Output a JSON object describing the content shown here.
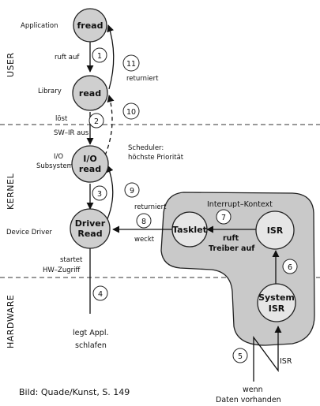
{
  "layers": {
    "user": "USER",
    "kernel": "KERNEL",
    "hardware": "HARDWARE"
  },
  "side_labels": {
    "application": "Application",
    "library": "Library",
    "io_line1": "I/O",
    "io_line2": "Subsystem",
    "device_driver": "Device Driver"
  },
  "nodes": {
    "fread": "fread",
    "read": "read",
    "io_read_line1": "I/O",
    "io_read_line2": "read",
    "driver_line1": "Driver",
    "driver_line2": "Read",
    "tasklet": "Tasklet",
    "isr": "ISR",
    "system_isr_line1": "System",
    "system_isr_line2": "ISR"
  },
  "region_title": "Interrupt–Kontext",
  "steps": [
    "1",
    "2",
    "3",
    "4",
    "5",
    "6",
    "7",
    "8",
    "9",
    "10",
    "11"
  ],
  "labels": {
    "ruft_auf": "ruft auf",
    "loest": "löst",
    "sw_ir_aus": "SW–IR aus",
    "returniert_top": "returniert",
    "scheduler_line1": "Scheduler:",
    "scheduler_line2": "höchste Priorität",
    "returniert_mid": "returniert",
    "weckt": "weckt",
    "ruft": "ruft",
    "treiber_auf": "Treiber auf",
    "startet": "startet",
    "hw_zugriff": "HW–Zugriff",
    "legt_line1": "legt Appl.",
    "legt_line2": "schlafen",
    "isr_signal": "ISR",
    "wenn": "wenn",
    "daten": "Daten vorhanden"
  },
  "caption": "Bild: Quade/Kunst, S. 149"
}
